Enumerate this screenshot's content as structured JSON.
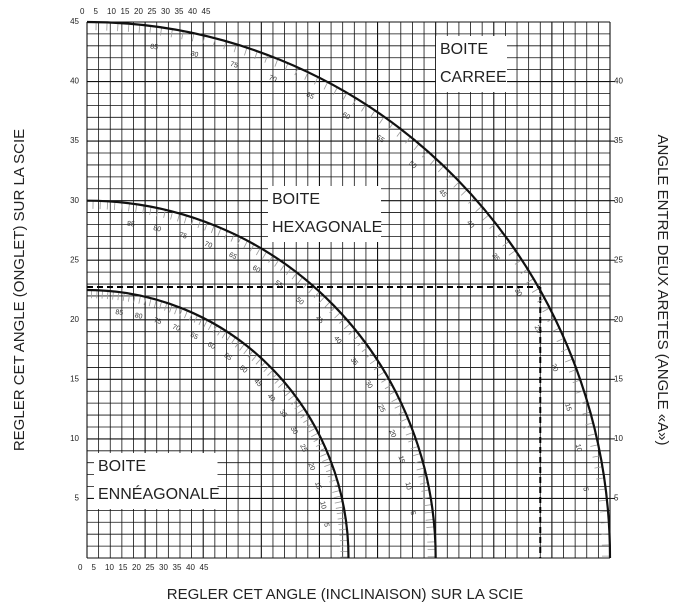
{
  "chart_data": {
    "type": "nomogram",
    "x_label": "REGLER CET ANGLE (INCLINAISON) SUR LA SCIE",
    "y_label": "REGLER CET ANGLE (ONGLET) SUR LA SCIE",
    "y2_label": "ANGLE ENTRE DEUX ARETES (ANGLE «A»)",
    "xlim": [
      0,
      45
    ],
    "ylim": [
      0,
      45
    ],
    "xticks": [
      0,
      5,
      10,
      15,
      20,
      25,
      30,
      35,
      40,
      45
    ],
    "yticks": [
      5,
      10,
      15,
      20,
      25,
      30,
      35,
      40,
      45
    ],
    "y2ticks": [
      5,
      10,
      15,
      20,
      25,
      30,
      35,
      40
    ],
    "grid": true,
    "arcs": [
      {
        "name": [
          "BOITE",
          "CARREE"
        ],
        "radius": 45,
        "angle_labels": [
          85,
          80,
          75,
          70,
          65,
          60,
          55,
          50,
          45,
          40,
          35,
          30,
          25,
          20,
          15,
          10,
          5
        ]
      },
      {
        "name": [
          "BOITE",
          "HEXAGONALE"
        ],
        "radius": 30,
        "angle_labels": [
          85,
          80,
          75,
          70,
          65,
          60,
          55,
          50,
          45,
          40,
          35,
          30,
          25,
          20,
          15,
          10,
          5
        ]
      },
      {
        "name": [
          "BOITE",
          "ENNÉAGONALE"
        ],
        "radius": 22.5,
        "angle_labels": [
          85,
          80,
          75,
          70,
          65,
          60,
          55,
          50,
          45,
          40,
          35,
          30,
          25,
          20,
          15,
          10,
          5
        ]
      }
    ],
    "guide": {
      "x": 39,
      "y": 22.75
    }
  }
}
